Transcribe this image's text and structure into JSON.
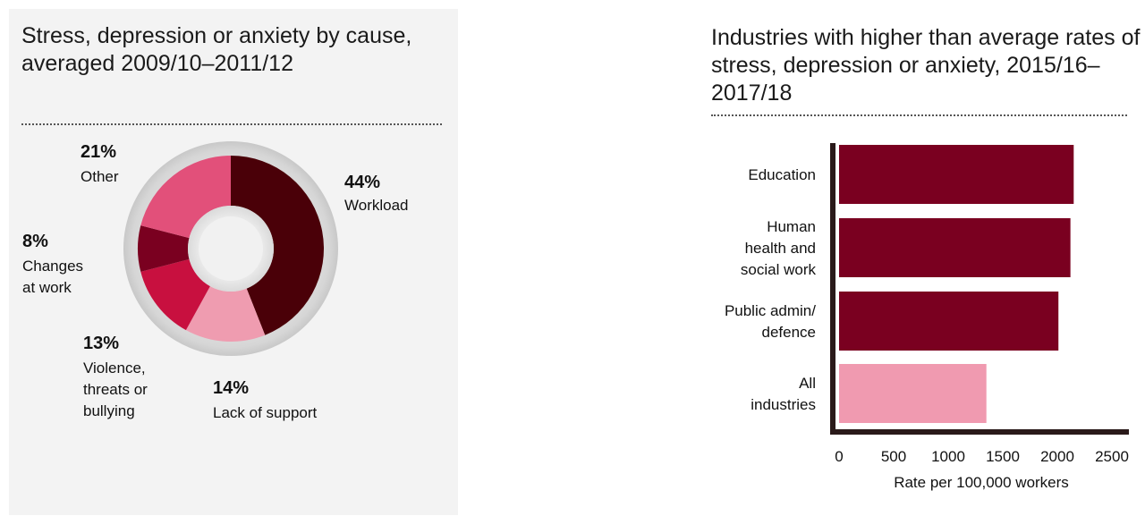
{
  "charts": [
    {
      "id": "donut",
      "title": "Stress, depression or anxiety by cause, averaged 2009/10–2011/12"
    },
    {
      "id": "bars",
      "title": "Industries with higher than average rates of stress, depression or anxiety, 2015/16–2017/18"
    }
  ],
  "chart_data": [
    {
      "type": "pie",
      "donut": true,
      "title": "Stress, depression or anxiety by cause, averaged 2009/10–2011/12",
      "slices": [
        {
          "label": "Workload",
          "value": 44,
          "pct_label": "44%",
          "color": "#4a0008"
        },
        {
          "label": "Lack of support",
          "value": 14,
          "pct_label": "14%",
          "color": "#ef9cb0"
        },
        {
          "label": "Violence, threats or bullying",
          "value": 13,
          "pct_label": "13%",
          "color": "#c8103f"
        },
        {
          "label": "Changes at work",
          "value": 8,
          "pct_label": "8%",
          "color": "#7a0020"
        },
        {
          "label": "Other",
          "value": 21,
          "pct_label": "21%",
          "color": "#e2507a"
        }
      ]
    },
    {
      "type": "bar",
      "orientation": "horizontal",
      "title": "Industries with higher than average rates of stress, depression or anxiety, 2015/16–2017/18",
      "categories": [
        "Education",
        "Human health and social work",
        "Public admin/ defence",
        "All industries"
      ],
      "values": [
        2150,
        2120,
        2010,
        1350
      ],
      "colors": [
        "#7a0020",
        "#7a0020",
        "#7a0020",
        "#f09ab0"
      ],
      "xlabel": "Rate per 100,000 workers",
      "ylabel": "",
      "xlim": [
        0,
        2500
      ],
      "xticks": [
        "0",
        "500",
        "1000",
        "1500",
        "2000",
        "2500"
      ],
      "grid": false
    }
  ]
}
